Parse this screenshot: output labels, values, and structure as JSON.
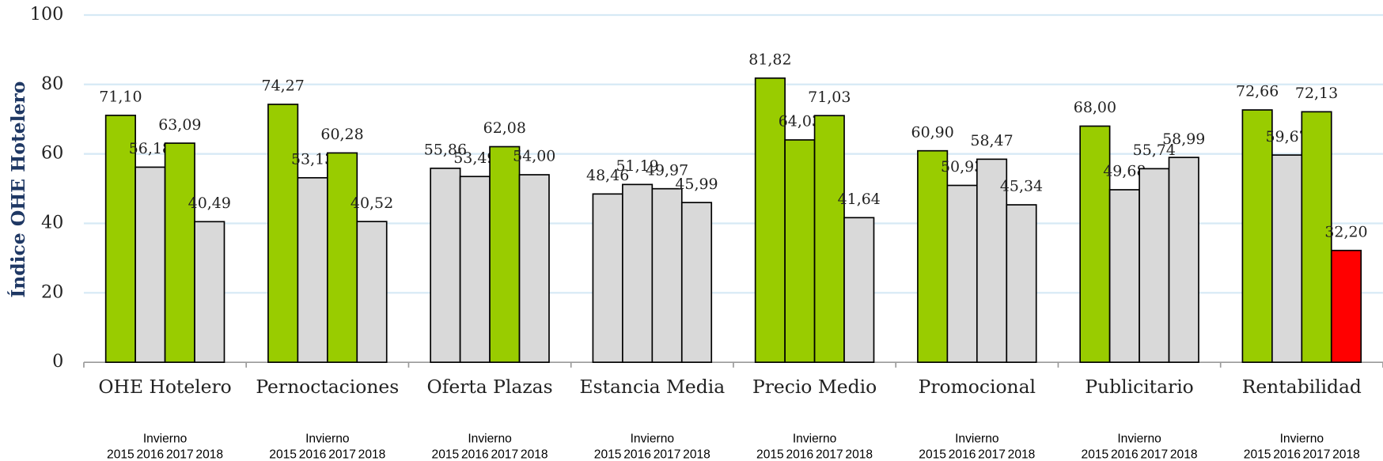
{
  "chart_data": {
    "type": "bar",
    "y_label": "Índice OHE Hotelero",
    "group_label": "Invierno",
    "categories": [
      "OHE Hotelero",
      "Pernoctaciones",
      "Oferta Plazas",
      "Estancia Media",
      "Precio Medio",
      "Promocional",
      "Publicitario",
      "Rentabilidad"
    ],
    "series": [
      {
        "name": "2015",
        "values": [
          71.1,
          74.27,
          55.86,
          48.46,
          81.82,
          60.9,
          68.0,
          72.66
        ],
        "value_labels": [
          "71,10",
          "74,27",
          "55,86",
          "48,46",
          "81,82",
          "60,90",
          "68,00",
          "72,66"
        ],
        "colors": [
          "#99cc00",
          "#99cc00",
          "#d9d9d9",
          "#d9d9d9",
          "#99cc00",
          "#99cc00",
          "#99cc00",
          "#99cc00"
        ]
      },
      {
        "name": "2016",
        "values": [
          56.18,
          53.13,
          53.49,
          51.19,
          64.03,
          50.93,
          49.68,
          59.67
        ],
        "value_labels": [
          "56,18",
          "53,13",
          "53,49",
          "51,19",
          "64,03",
          "50,93",
          "49,68",
          "59,67"
        ],
        "colors": [
          "#d9d9d9",
          "#d9d9d9",
          "#d9d9d9",
          "#d9d9d9",
          "#99cc00",
          "#d9d9d9",
          "#d9d9d9",
          "#d9d9d9"
        ]
      },
      {
        "name": "2017",
        "values": [
          63.09,
          60.28,
          62.08,
          49.97,
          71.03,
          58.47,
          55.74,
          72.13
        ],
        "value_labels": [
          "63,09",
          "60,28",
          "62,08",
          "49,97",
          "71,03",
          "58,47",
          "55,74",
          "72,13"
        ],
        "colors": [
          "#99cc00",
          "#99cc00",
          "#99cc00",
          "#d9d9d9",
          "#99cc00",
          "#d9d9d9",
          "#d9d9d9",
          "#99cc00"
        ]
      },
      {
        "name": "2018",
        "values": [
          40.49,
          40.52,
          54.0,
          45.99,
          41.64,
          45.34,
          58.99,
          32.2
        ],
        "value_labels": [
          "40,49",
          "40,52",
          "54,00",
          "45,99",
          "41,64",
          "45,34",
          "58,99",
          "32,20"
        ],
        "colors": [
          "#d9d9d9",
          "#d9d9d9",
          "#d9d9d9",
          "#d9d9d9",
          "#d9d9d9",
          "#d9d9d9",
          "#d9d9d9",
          "#ff0000"
        ]
      }
    ],
    "ylim": [
      0,
      100
    ],
    "yticks": [
      0,
      20,
      40,
      60,
      80,
      100
    ],
    "grid": true,
    "grid_color": "#d6e9f5"
  }
}
